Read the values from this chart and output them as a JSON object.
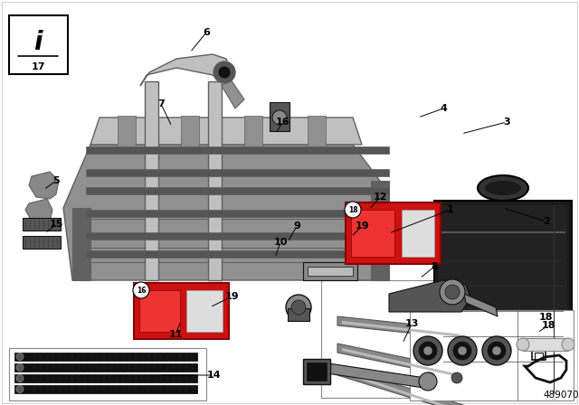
{
  "bg_color": "#ffffff",
  "part_number": "489070",
  "rack_color": "#909090",
  "rack_dark": "#606060",
  "rack_light": "#c0c0c0",
  "black": "#111111",
  "red": "#cc1111",
  "red_light": "#ee3333",
  "gray_dark": "#555555",
  "gray_mid": "#888888",
  "gray_light": "#bbbbbb",
  "white": "#ffffff",
  "border": "#888888"
}
